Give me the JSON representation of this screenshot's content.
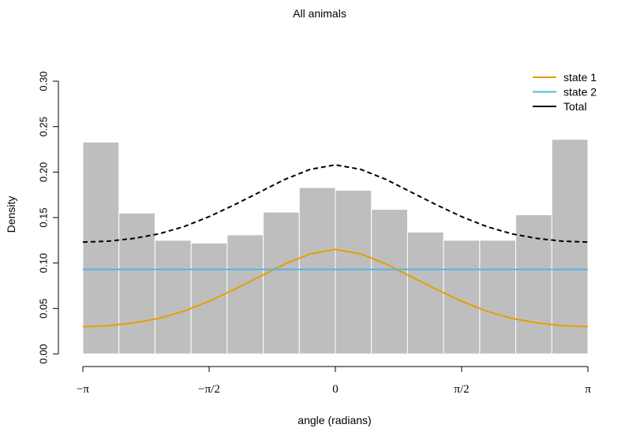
{
  "chart_data": {
    "type": "bar",
    "title": "All animals",
    "xlabel": "angle (radians)",
    "ylabel": "Density",
    "xlim": [
      -3.14159,
      3.14159
    ],
    "ylim": [
      0,
      0.3
    ],
    "yticks": [
      0.0,
      0.05,
      0.1,
      0.15,
      0.2,
      0.25,
      0.3
    ],
    "ytick_labels": [
      "0.00",
      "0.05",
      "0.10",
      "0.15",
      "0.20",
      "0.25",
      "0.30"
    ],
    "xticks": [
      -3.14159,
      -1.5708,
      0,
      1.5708,
      3.14159
    ],
    "xtick_labels": [
      "−π",
      "−π/2",
      "0",
      "π/2",
      "π"
    ],
    "grid": false,
    "legend_position": "top-right",
    "histogram": {
      "bin_edges": [
        -3.14159,
        -2.6928,
        -2.244,
        -1.7952,
        -1.3464,
        -0.8976,
        -0.4488,
        0,
        0.4488,
        0.8976,
        1.3464,
        1.7952,
        2.244,
        2.6928,
        3.14159
      ],
      "values": [
        0.233,
        0.155,
        0.125,
        0.122,
        0.131,
        0.156,
        0.183,
        0.18,
        0.159,
        0.134,
        0.125,
        0.125,
        0.153,
        0.236
      ],
      "color": "#bebebe"
    },
    "series": [
      {
        "name": "state 1",
        "color": "#e69f00",
        "dash": "solid",
        "x": [
          -3.14159,
          -2.8274,
          -2.5133,
          -2.1991,
          -1.885,
          -1.5708,
          -1.2566,
          -0.9425,
          -0.6283,
          -0.3142,
          0,
          0.3142,
          0.6283,
          0.9425,
          1.2566,
          1.5708,
          1.885,
          2.1991,
          2.5133,
          2.8274,
          3.14159
        ],
        "y": [
          0.03,
          0.031,
          0.034,
          0.039,
          0.047,
          0.058,
          0.071,
          0.085,
          0.099,
          0.11,
          0.115,
          0.11,
          0.099,
          0.085,
          0.071,
          0.058,
          0.047,
          0.039,
          0.034,
          0.031,
          0.03
        ]
      },
      {
        "name": "state 2",
        "color": "#56b4e9",
        "dash": "solid",
        "x": [
          -3.14159,
          3.14159
        ],
        "y": [
          0.093,
          0.093
        ]
      },
      {
        "name": "Total",
        "color": "#000000",
        "dash": "dashed",
        "x": [
          -3.14159,
          -2.8274,
          -2.5133,
          -2.1991,
          -1.885,
          -1.5708,
          -1.2566,
          -0.9425,
          -0.6283,
          -0.3142,
          0,
          0.3142,
          0.6283,
          0.9425,
          1.2566,
          1.5708,
          1.885,
          2.1991,
          2.5133,
          2.8274,
          3.14159
        ],
        "y": [
          0.123,
          0.124,
          0.127,
          0.132,
          0.14,
          0.151,
          0.164,
          0.178,
          0.192,
          0.203,
          0.208,
          0.203,
          0.192,
          0.178,
          0.164,
          0.151,
          0.14,
          0.132,
          0.127,
          0.124,
          0.123
        ]
      }
    ]
  }
}
